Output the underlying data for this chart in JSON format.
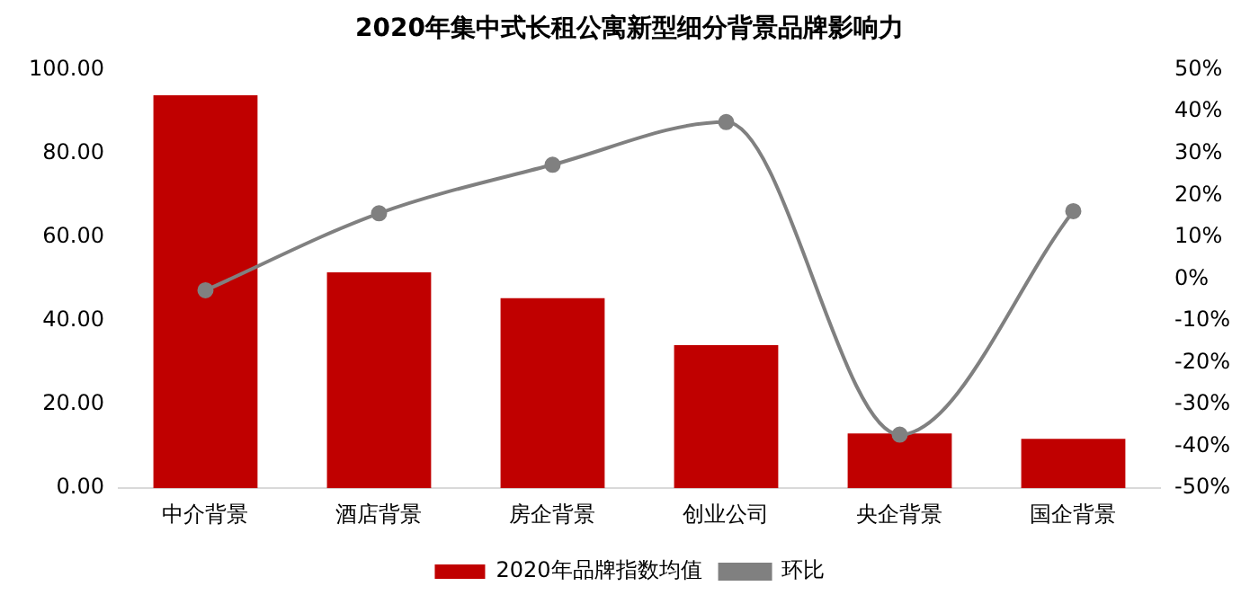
{
  "chart_data": {
    "type": "bar",
    "title": "2020年集中式长租公寓新型细分背景品牌影响力",
    "categories": [
      "中介背景",
      "酒店背景",
      "房企背景",
      "创业公司",
      "央企背景",
      "国企背景"
    ],
    "series": [
      {
        "name": "2020年品牌指数均值",
        "color": "#c00000",
        "values": [
          93.9,
          51.6,
          45.4,
          34.2,
          13.1,
          11.8
        ]
      },
      {
        "name": "环比",
        "type": "line",
        "axis": "y2",
        "color": "#808080",
        "marker": "circle",
        "values": [
          -2.7,
          15.7,
          27.3,
          37.5,
          -37.2,
          16.2
        ]
      }
    ],
    "ylim": [
      0,
      100
    ],
    "yticks": [
      {
        "value": 0,
        "label": "0.00"
      },
      {
        "value": 20,
        "label": "20.00"
      },
      {
        "value": 40,
        "label": "40.00"
      },
      {
        "value": 60,
        "label": "60.00"
      },
      {
        "value": 80,
        "label": "80.00"
      },
      {
        "value": 100,
        "label": "100.00"
      }
    ],
    "y2lim": [
      -50,
      50
    ],
    "y2ticks": [
      {
        "value": -50,
        "label": "-50%"
      },
      {
        "value": -40,
        "label": "-40%"
      },
      {
        "value": -30,
        "label": "-30%"
      },
      {
        "value": -20,
        "label": "-20%"
      },
      {
        "value": -10,
        "label": "-10%"
      },
      {
        "value": 0,
        "label": "0%"
      },
      {
        "value": 10,
        "label": "10%"
      },
      {
        "value": 20,
        "label": "20%"
      },
      {
        "value": 30,
        "label": "30%"
      },
      {
        "value": 40,
        "label": "40%"
      },
      {
        "value": 50,
        "label": "50%"
      }
    ],
    "grid": false,
    "legend": "bottom"
  }
}
